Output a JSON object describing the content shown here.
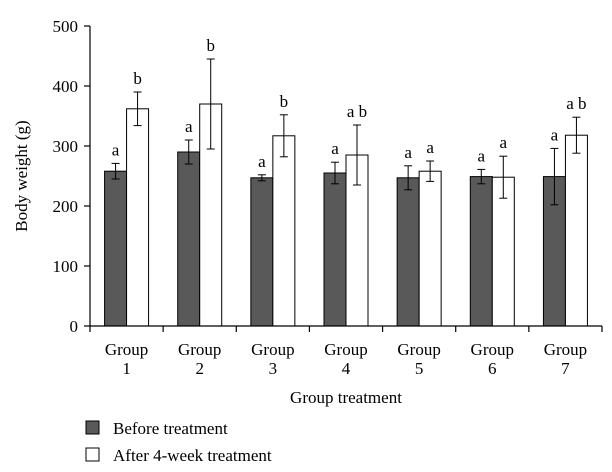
{
  "chart_data": {
    "type": "bar",
    "title": "",
    "xlabel": "Group treatment",
    "ylabel": "Body weight (g)",
    "ylim": [
      0,
      500
    ],
    "yticks": [
      0,
      100,
      200,
      300,
      400,
      500
    ],
    "categories": [
      [
        "Group",
        "1"
      ],
      [
        "Group",
        "2"
      ],
      [
        "Group",
        "3"
      ],
      [
        "Group",
        "4"
      ],
      [
        "Group",
        "5"
      ],
      [
        "Group",
        "6"
      ],
      [
        "Group",
        "7"
      ]
    ],
    "series": [
      {
        "name": "Before treatment",
        "color": "#595959",
        "values": [
          258,
          290,
          247,
          255,
          247,
          249,
          249
        ],
        "errors": [
          13,
          20,
          5,
          18,
          20,
          12,
          47
        ],
        "labels": [
          "a",
          "a",
          "a",
          "a",
          "a",
          "a",
          "a"
        ]
      },
      {
        "name": "After 4-week treatment",
        "color": "#ffffff",
        "values": [
          362,
          370,
          317,
          285,
          258,
          248,
          318
        ],
        "errors": [
          28,
          75,
          35,
          50,
          17,
          35,
          30
        ],
        "labels": [
          "b",
          "b",
          "b",
          "a b",
          "a",
          "a",
          "a b"
        ]
      }
    ],
    "legend_position": "bottom-left"
  }
}
